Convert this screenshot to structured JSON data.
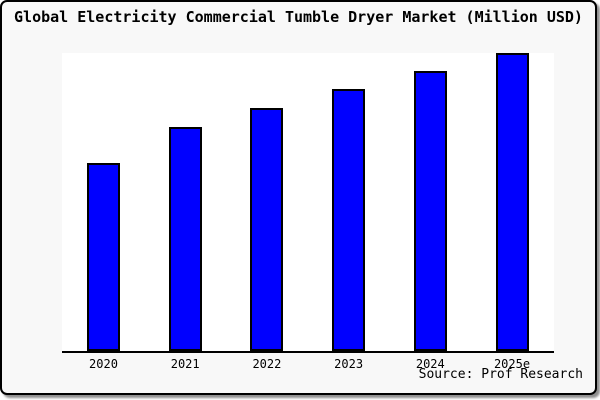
{
  "header": {
    "title": "Global Electricity Commercial Tumble Dryer Market (Million USD)"
  },
  "footer": {
    "source": "Source: Prof Research"
  },
  "colors": {
    "bar_fill": "#0000ff",
    "bar_border": "#000000",
    "plot_background": "#ffffff",
    "card_background": "#f8f8f8",
    "card_border": "#000000",
    "axis_line": "#000000"
  },
  "chart_data": {
    "type": "bar",
    "title": "Global Electricity Commercial Tumble Dryer Market (Million USD)",
    "unit": "Million USD",
    "categories": [
      "2020",
      "2021",
      "2022",
      "2023",
      "2024",
      "2025e"
    ],
    "values": [
      63,
      75.3,
      81.7,
      87.9,
      94,
      100
    ],
    "values_note": "Relative bar heights as % of the 2025e bar; the source chart shows no y-axis tick values",
    "xlabel": "",
    "ylabel": "",
    "ylim": [
      0,
      100
    ],
    "gridlines": false,
    "y_axis_visible": false,
    "legend": false,
    "bar_color": "#0000ff",
    "bar_border_color": "#000000",
    "source": "Source: Prof Research"
  }
}
